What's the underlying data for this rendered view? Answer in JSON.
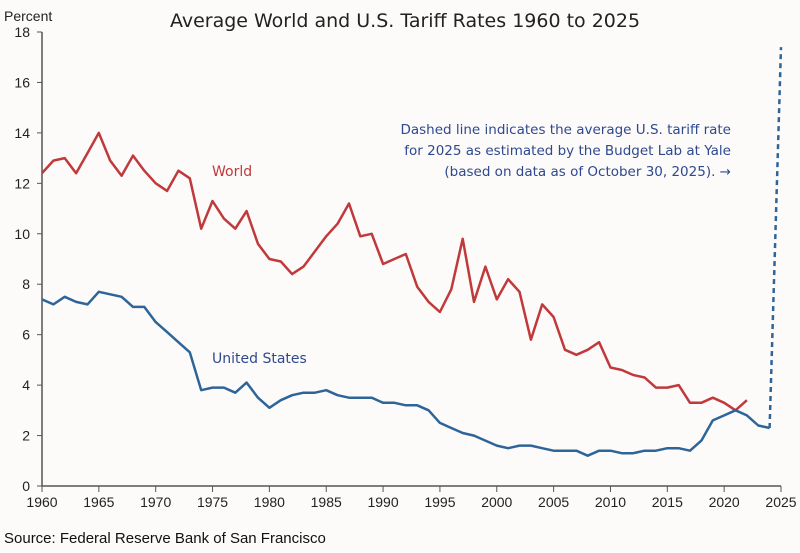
{
  "chart_data": {
    "type": "line",
    "title": "Average World and U.S. Tariff Rates 1960 to 2025",
    "ylabel": "Percent",
    "xlabel": "",
    "xlim": [
      1960,
      2025
    ],
    "ylim": [
      0,
      18
    ],
    "xticks": [
      1960,
      1965,
      1970,
      1975,
      1980,
      1985,
      1990,
      1995,
      2000,
      2005,
      2010,
      2015,
      2020,
      2025
    ],
    "yticks": [
      0,
      2,
      4,
      6,
      8,
      10,
      12,
      14,
      16,
      18
    ],
    "grid": false,
    "series": [
      {
        "name": "World",
        "color": "#c0393b",
        "x_start": 1960,
        "values": [
          12.4,
          12.9,
          13.0,
          12.4,
          13.2,
          14.0,
          12.9,
          12.3,
          13.1,
          12.5,
          12.0,
          11.7,
          12.5,
          12.2,
          10.2,
          11.3,
          10.6,
          10.2,
          10.9,
          9.6,
          9.0,
          8.9,
          8.4,
          8.7,
          9.3,
          9.9,
          10.4,
          11.2,
          9.9,
          10.0,
          8.8,
          9.0,
          9.2,
          7.9,
          7.3,
          6.9,
          7.8,
          9.8,
          7.3,
          8.7,
          7.4,
          8.2,
          7.7,
          5.8,
          7.2,
          6.7,
          5.4,
          5.2,
          5.4,
          5.7,
          4.7,
          4.6,
          4.4,
          4.3,
          3.9,
          3.9,
          4.0,
          3.3,
          3.3,
          3.5,
          3.3,
          3.0,
          3.4
        ]
      },
      {
        "name": "United States",
        "color": "#2e6599",
        "x_start": 1960,
        "values": [
          7.4,
          7.2,
          7.5,
          7.3,
          7.2,
          7.7,
          7.6,
          7.5,
          7.1,
          7.1,
          6.5,
          6.1,
          5.7,
          5.3,
          3.8,
          3.9,
          3.9,
          3.7,
          4.1,
          3.5,
          3.1,
          3.4,
          3.6,
          3.7,
          3.7,
          3.8,
          3.6,
          3.5,
          3.5,
          3.5,
          3.3,
          3.3,
          3.2,
          3.2,
          3.0,
          2.5,
          2.3,
          2.1,
          2.0,
          1.8,
          1.6,
          1.5,
          1.6,
          1.6,
          1.5,
          1.4,
          1.4,
          1.4,
          1.2,
          1.4,
          1.4,
          1.3,
          1.3,
          1.4,
          1.4,
          1.5,
          1.5,
          1.4,
          1.8,
          2.6,
          2.8,
          3.0,
          2.8,
          2.4,
          2.3
        ]
      },
      {
        "name": "",
        "style": "dashed",
        "color": "#2e6599",
        "x": [
          2024,
          2025
        ],
        "values": [
          2.3,
          17.4
        ]
      }
    ],
    "annotation": {
      "lines": [
        "Dashed line indicates the average U.S. tariff rate",
        "for 2025 as estimated by the Budget Lab at Yale",
        "(based on data as of October 30, 2025). →"
      ],
      "color": "#2d4a8f"
    },
    "source": "Source: Federal Reserve Bank of San Francisco"
  }
}
